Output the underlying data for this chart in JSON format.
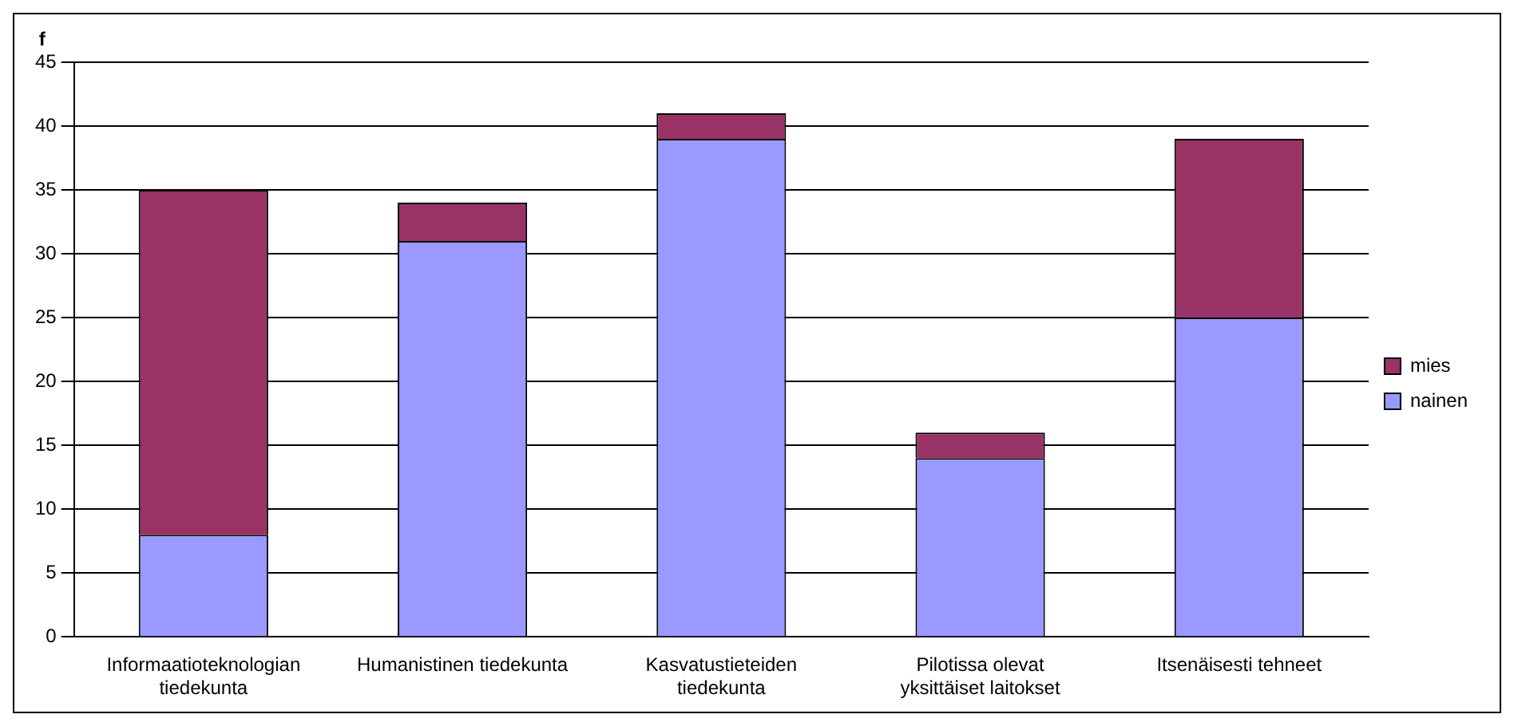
{
  "chart_data": {
    "type": "bar",
    "ylabel": "f",
    "stacked": true,
    "categories": [
      "Informaatioteknologian tiedekunta",
      "Humanistinen tiedekunta",
      "Kasvatustieteiden tiedekunta",
      "Pilotissa olevat yksittäiset laitokset",
      "Itsenäisesti tehneet"
    ],
    "series": [
      {
        "name": "nainen",
        "color": "#9999ff",
        "values": [
          8,
          31,
          39,
          14,
          25
        ]
      },
      {
        "name": "mies",
        "color": "#993366",
        "values": [
          27,
          3,
          2,
          2,
          14
        ]
      }
    ],
    "ylim": [
      0,
      45
    ],
    "yticks": [
      0,
      5,
      10,
      15,
      20,
      25,
      30,
      35,
      40,
      45
    ],
    "grid": "y",
    "legend": "right"
  }
}
